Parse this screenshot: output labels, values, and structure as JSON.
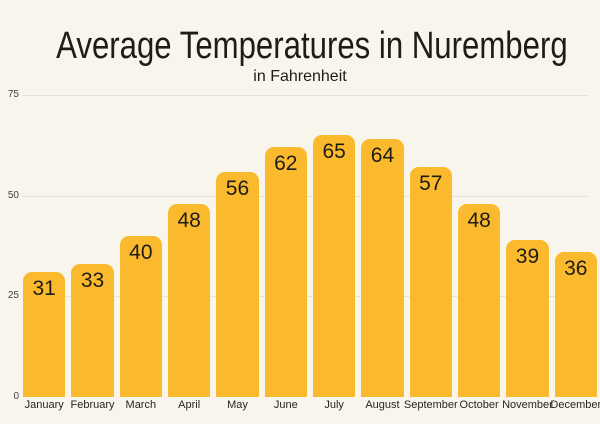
{
  "chart_data": {
    "type": "bar",
    "title": "Average Temperatures in Nuremberg",
    "subtitle": "in Fahrenheit",
    "categories": [
      "January",
      "February",
      "March",
      "April",
      "May",
      "June",
      "July",
      "August",
      "September",
      "October",
      "November",
      "December"
    ],
    "values": [
      31,
      33,
      40,
      48,
      56,
      62,
      65,
      64,
      57,
      48,
      39,
      36
    ],
    "xlabel": "",
    "ylabel": "",
    "ylim": [
      0,
      75
    ],
    "yticks": [
      0,
      25,
      50,
      75
    ],
    "grid": true,
    "legend": false,
    "value_labels": "inside-top",
    "bar_color": "#FBBA2D",
    "text_color": "#1E1C17",
    "tick_color": "#45433D",
    "gridline_color": "#E5E3DA",
    "background_color": "#F8F6EC"
  }
}
